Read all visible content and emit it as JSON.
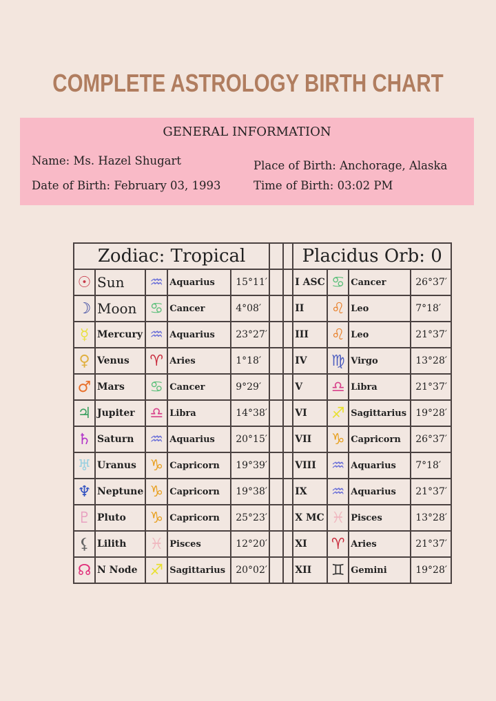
{
  "title": "COMPLETE ASTROLOGY BIRTH CHART",
  "general": {
    "heading": "GENERAL INFORMATION",
    "name": "Name: Ms. Hazel Shugart",
    "dob": "Date of Birth: February 03, 1993",
    "pob": "Place of Birth: Anchorage, Alaska",
    "tob": "Time of Birth: 03:02 PM"
  },
  "planets_header": "Zodiac: Tropical",
  "houses_header": "Placidus Orb: 0",
  "planets": [
    {
      "icon": "sun-icon",
      "glyph": "☉",
      "color": "#c83a4a",
      "name": "Sun",
      "sign_icon": "aquarius-icon",
      "sign_glyph": "♒",
      "sign_color": "#6a6fd8",
      "sign": "Aquarius",
      "degree": "15°11′"
    },
    {
      "icon": "moon-icon",
      "glyph": "☽",
      "color": "#2d3c9c",
      "name": "Moon",
      "sign_icon": "cancer-icon",
      "sign_glyph": "♋",
      "sign_color": "#5cbf7a",
      "sign": "Cancer",
      "degree": "4°08′"
    },
    {
      "icon": "mercury-icon",
      "glyph": "☿",
      "color": "#e8e040",
      "name": "Mercury",
      "sign_icon": "aquarius-icon",
      "sign_glyph": "♒",
      "sign_color": "#6a6fd8",
      "sign": "Aquarius",
      "degree": "23°27′"
    },
    {
      "icon": "venus-icon",
      "glyph": "♀",
      "color": "#e0b040",
      "name": "Venus",
      "sign_icon": "aries-icon",
      "sign_glyph": "♈",
      "sign_color": "#c8283a",
      "sign": "Aries",
      "degree": "1°18′"
    },
    {
      "icon": "mars-icon",
      "glyph": "♂",
      "color": "#e8702a",
      "name": "Mars",
      "sign_icon": "cancer-icon",
      "sign_glyph": "♋",
      "sign_color": "#5cbf7a",
      "sign": "Cancer",
      "degree": "9°29′"
    },
    {
      "icon": "jupiter-icon",
      "glyph": "♃",
      "color": "#3aa060",
      "name": "Jupiter",
      "sign_icon": "libra-icon",
      "sign_glyph": "♎",
      "sign_color": "#d8408a",
      "sign": "Libra",
      "degree": "14°38′"
    },
    {
      "icon": "saturn-icon",
      "glyph": "♄",
      "color": "#b030c8",
      "name": "Saturn",
      "sign_icon": "aquarius-icon",
      "sign_glyph": "♒",
      "sign_color": "#6a6fd8",
      "sign": "Aquarius",
      "degree": "20°15′"
    },
    {
      "icon": "uranus-icon",
      "glyph": "♅",
      "color": "#9ad0e0",
      "name": "Uranus",
      "sign_icon": "capricorn-icon",
      "sign_glyph": "♑",
      "sign_color": "#e8a020",
      "sign": "Capricorn",
      "degree": "19°39′"
    },
    {
      "icon": "neptune-icon",
      "glyph": "♆",
      "color": "#3050c0",
      "name": "Neptune",
      "sign_icon": "capricorn-icon",
      "sign_glyph": "♑",
      "sign_color": "#e8a020",
      "sign": "Capricorn",
      "degree": "19°38′"
    },
    {
      "icon": "pluto-icon",
      "glyph": "♇",
      "color": "#e8a0c0",
      "name": "Pluto",
      "sign_icon": "capricorn-icon",
      "sign_glyph": "♑",
      "sign_color": "#e8a020",
      "sign": "Capricorn",
      "degree": "25°23′"
    },
    {
      "icon": "lilith-icon",
      "glyph": "⚸",
      "color": "#666666",
      "name": "Lilith",
      "sign_icon": "pisces-icon",
      "sign_glyph": "♓",
      "sign_color": "#f0b8c0",
      "sign": "Pisces",
      "degree": "12°20′"
    },
    {
      "icon": "north-node-icon",
      "glyph": "☊",
      "color": "#e0307a",
      "name": "N Node",
      "sign_icon": "sagittarius-icon",
      "sign_glyph": "♐",
      "sign_color": "#e8e030",
      "sign": "Sagittarius",
      "degree": "20°02′"
    }
  ],
  "houses": [
    {
      "house": "I ASC",
      "sign_icon": "cancer-icon",
      "sign_glyph": "♋",
      "sign_color": "#5cbf7a",
      "sign": "Cancer",
      "degree": "26°37′"
    },
    {
      "house": "II",
      "sign_icon": "leo-icon",
      "sign_glyph": "♌",
      "sign_color": "#e8802a",
      "sign": "Leo",
      "degree": "7°18′"
    },
    {
      "house": "III",
      "sign_icon": "leo-icon",
      "sign_glyph": "♌",
      "sign_color": "#e8802a",
      "sign": "Leo",
      "degree": "21°37′"
    },
    {
      "house": "IV",
      "sign_icon": "virgo-icon",
      "sign_glyph": "♍",
      "sign_color": "#5060c0",
      "sign": "Virgo",
      "degree": "13°28′"
    },
    {
      "house": "V",
      "sign_icon": "libra-icon",
      "sign_glyph": "♎",
      "sign_color": "#d8408a",
      "sign": "Libra",
      "degree": "21°37′"
    },
    {
      "house": "VI",
      "sign_icon": "sagittarius-icon",
      "sign_glyph": "♐",
      "sign_color": "#e8e030",
      "sign": "Sagittarius",
      "degree": "19°28′"
    },
    {
      "house": "VII",
      "sign_icon": "capricorn-icon",
      "sign_glyph": "♑",
      "sign_color": "#e8a020",
      "sign": "Capricorn",
      "degree": "26°37′"
    },
    {
      "house": "VIII",
      "sign_icon": "aquarius-icon",
      "sign_glyph": "♒",
      "sign_color": "#6a6fd8",
      "sign": "Aquarius",
      "degree": "7°18′"
    },
    {
      "house": "IX",
      "sign_icon": "aquarius-icon",
      "sign_glyph": "♒",
      "sign_color": "#6a6fd8",
      "sign": "Aquarius",
      "degree": "21°37′"
    },
    {
      "house": "X MC",
      "sign_icon": "pisces-icon",
      "sign_glyph": "♓",
      "sign_color": "#f0b8c0",
      "sign": "Pisces",
      "degree": "13°28′"
    },
    {
      "house": "XI",
      "sign_icon": "aries-icon",
      "sign_glyph": "♈",
      "sign_color": "#c8283a",
      "sign": "Aries",
      "degree": "21°37′"
    },
    {
      "house": "XII",
      "sign_icon": "gemini-icon",
      "sign_glyph": "♊",
      "sign_color": "#333333",
      "sign": "Gemini",
      "degree": "19°28′"
    }
  ]
}
